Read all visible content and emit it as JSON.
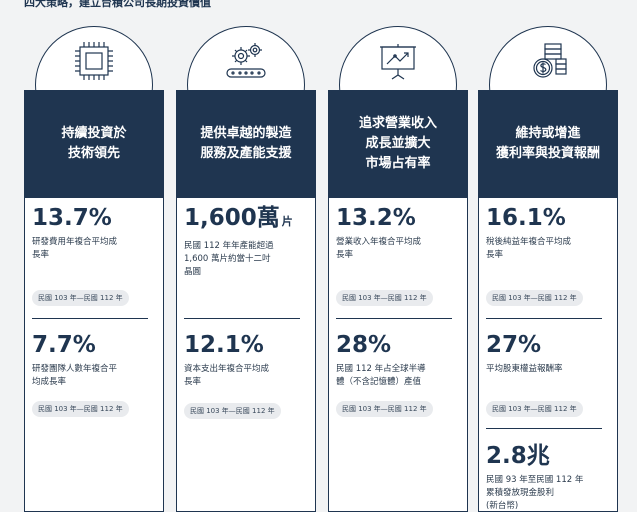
{
  "page": {
    "heading": "四大策略，建立台積公司長期投資價值"
  },
  "columns": [
    {
      "icon": "chip-icon",
      "header": "持續投資於\n技術領先",
      "stats": [
        {
          "value": "13.7%",
          "unit": "",
          "desc": "研發費用年複合平均成\n長率",
          "period": "民國 103 年—民國 112 年"
        },
        {
          "value": "7.7%",
          "unit": "",
          "desc": "研發團隊人數年複合平\n均成長率",
          "period": "民國 103 年—民國 112 年"
        }
      ]
    },
    {
      "icon": "conveyor-gears-icon",
      "header": "提供卓越的製造\n服務及產能支援",
      "stats": [
        {
          "value": "1,600萬",
          "unit": "片",
          "desc": "民國 112 年年產能超過\n1,600 萬片約當十二吋\n晶圓",
          "period": ""
        },
        {
          "value": "12.1%",
          "unit": "",
          "desc": "資本支出年複合平均成\n長率",
          "period": "民國 103 年—民國 112 年"
        }
      ]
    },
    {
      "icon": "presentation-chart-icon",
      "header": "追求營業收入\n成長並擴大\n市場占有率",
      "stats": [
        {
          "value": "13.2%",
          "unit": "",
          "desc": "營業收入年複合平均成\n長率",
          "period": "民國 103 年—民國 112 年"
        },
        {
          "value": "28%",
          "unit": "",
          "desc": "民國 112 年占全球半導\n體（不含記憶體）產值",
          "period": "民國 103 年—民國 112 年"
        }
      ]
    },
    {
      "icon": "coins-dollar-icon",
      "header": "維持或增進\n獲利率與投資報酬",
      "stats": [
        {
          "value": "16.1%",
          "unit": "",
          "desc": "稅後純益年複合平均成\n長率",
          "period": "民國 103 年—民國 112 年"
        },
        {
          "value": "27%",
          "unit": "",
          "desc": "平均股東權益報酬率",
          "period": "民國 103 年—民國 112 年"
        },
        {
          "value": "2.8兆",
          "unit": "",
          "desc": "民國 93 年至民國 112 年\n累積發放現金股利\n(新台幣)",
          "period": ""
        }
      ]
    }
  ]
}
